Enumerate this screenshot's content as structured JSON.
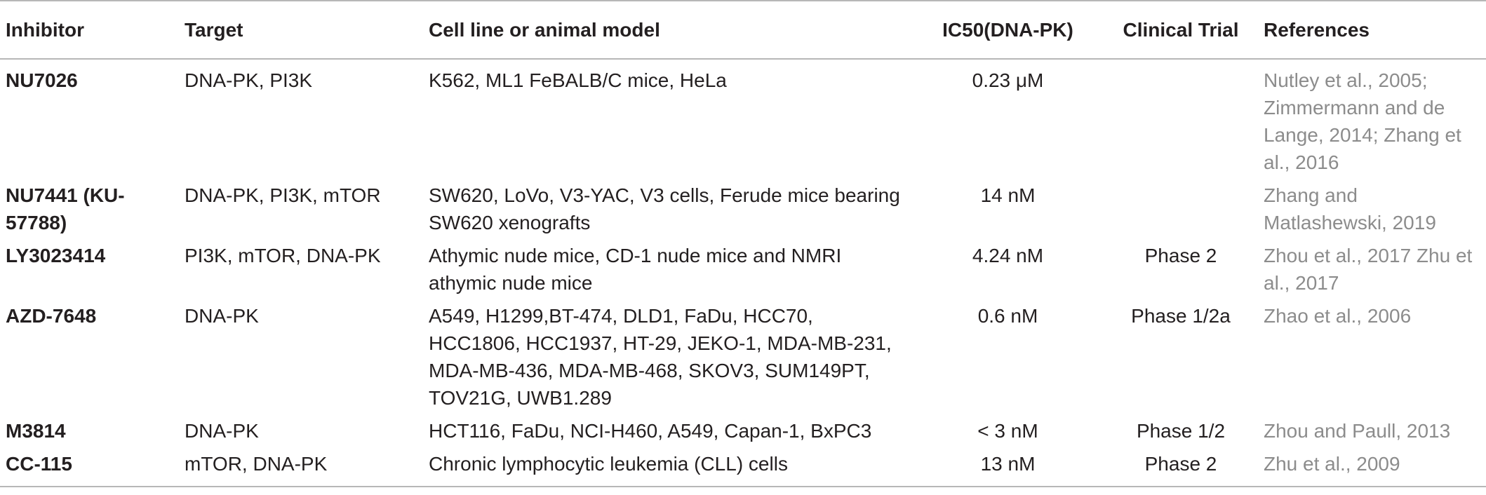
{
  "headers": {
    "inhibitor": "Inhibitor",
    "target": "Target",
    "model": "Cell line or animal model",
    "ic50": "IC50(DNA-PK)",
    "trial": "Clinical Trial",
    "references": "References"
  },
  "rows": [
    {
      "inhibitor": "NU7026",
      "target": "DNA-PK, PI3K",
      "model": "K562, ML1 FeBALB/C mice, HeLa",
      "ic50": "0.23 μM",
      "trial": "",
      "references": "Nutley et al., 2005; Zimmermann and de Lange, 2014; Zhang et al., 2016"
    },
    {
      "inhibitor": "NU7441 (KU-57788)",
      "target": "DNA-PK, PI3K, mTOR",
      "model": "SW620, LoVo, V3-YAC, V3 cells, Ferude mice bearing SW620 xenografts",
      "ic50": "14 nM",
      "trial": "",
      "references": "Zhang and Matlashewski, 2019"
    },
    {
      "inhibitor": "LY3023414",
      "target": "PI3K, mTOR, DNA-PK",
      "model": "Athymic nude mice, CD-1 nude mice and NMRI athymic nude mice",
      "ic50": "4.24 nM",
      "trial": "Phase 2",
      "references": "Zhou et al., 2017 Zhu et al., 2017"
    },
    {
      "inhibitor": "AZD-7648",
      "target": "DNA-PK",
      "model": "A549, H1299,BT-474, DLD1, FaDu, HCC70, HCC1806, HCC1937, HT-29, JEKO-1, MDA-MB-231, MDA-MB-436, MDA-MB-468, SKOV3, SUM149PT, TOV21G, UWB1.289",
      "ic50": "0.6 nM",
      "trial": "Phase 1/2a",
      "references": "Zhao et al., 2006"
    },
    {
      "inhibitor": "M3814",
      "target": "DNA-PK",
      "model": "HCT116, FaDu, NCI-H460, A549, Capan-1, BxPC3",
      "ic50": "< 3 nM",
      "trial": "Phase 1/2",
      "references": "Zhou and Paull, 2013"
    },
    {
      "inhibitor": "CC-115",
      "target": "mTOR, DNA-PK",
      "model": "Chronic lymphocytic leukemia (CLL) cells",
      "ic50": "13 nM",
      "trial": "Phase 2",
      "references": "Zhu et al., 2009"
    }
  ]
}
